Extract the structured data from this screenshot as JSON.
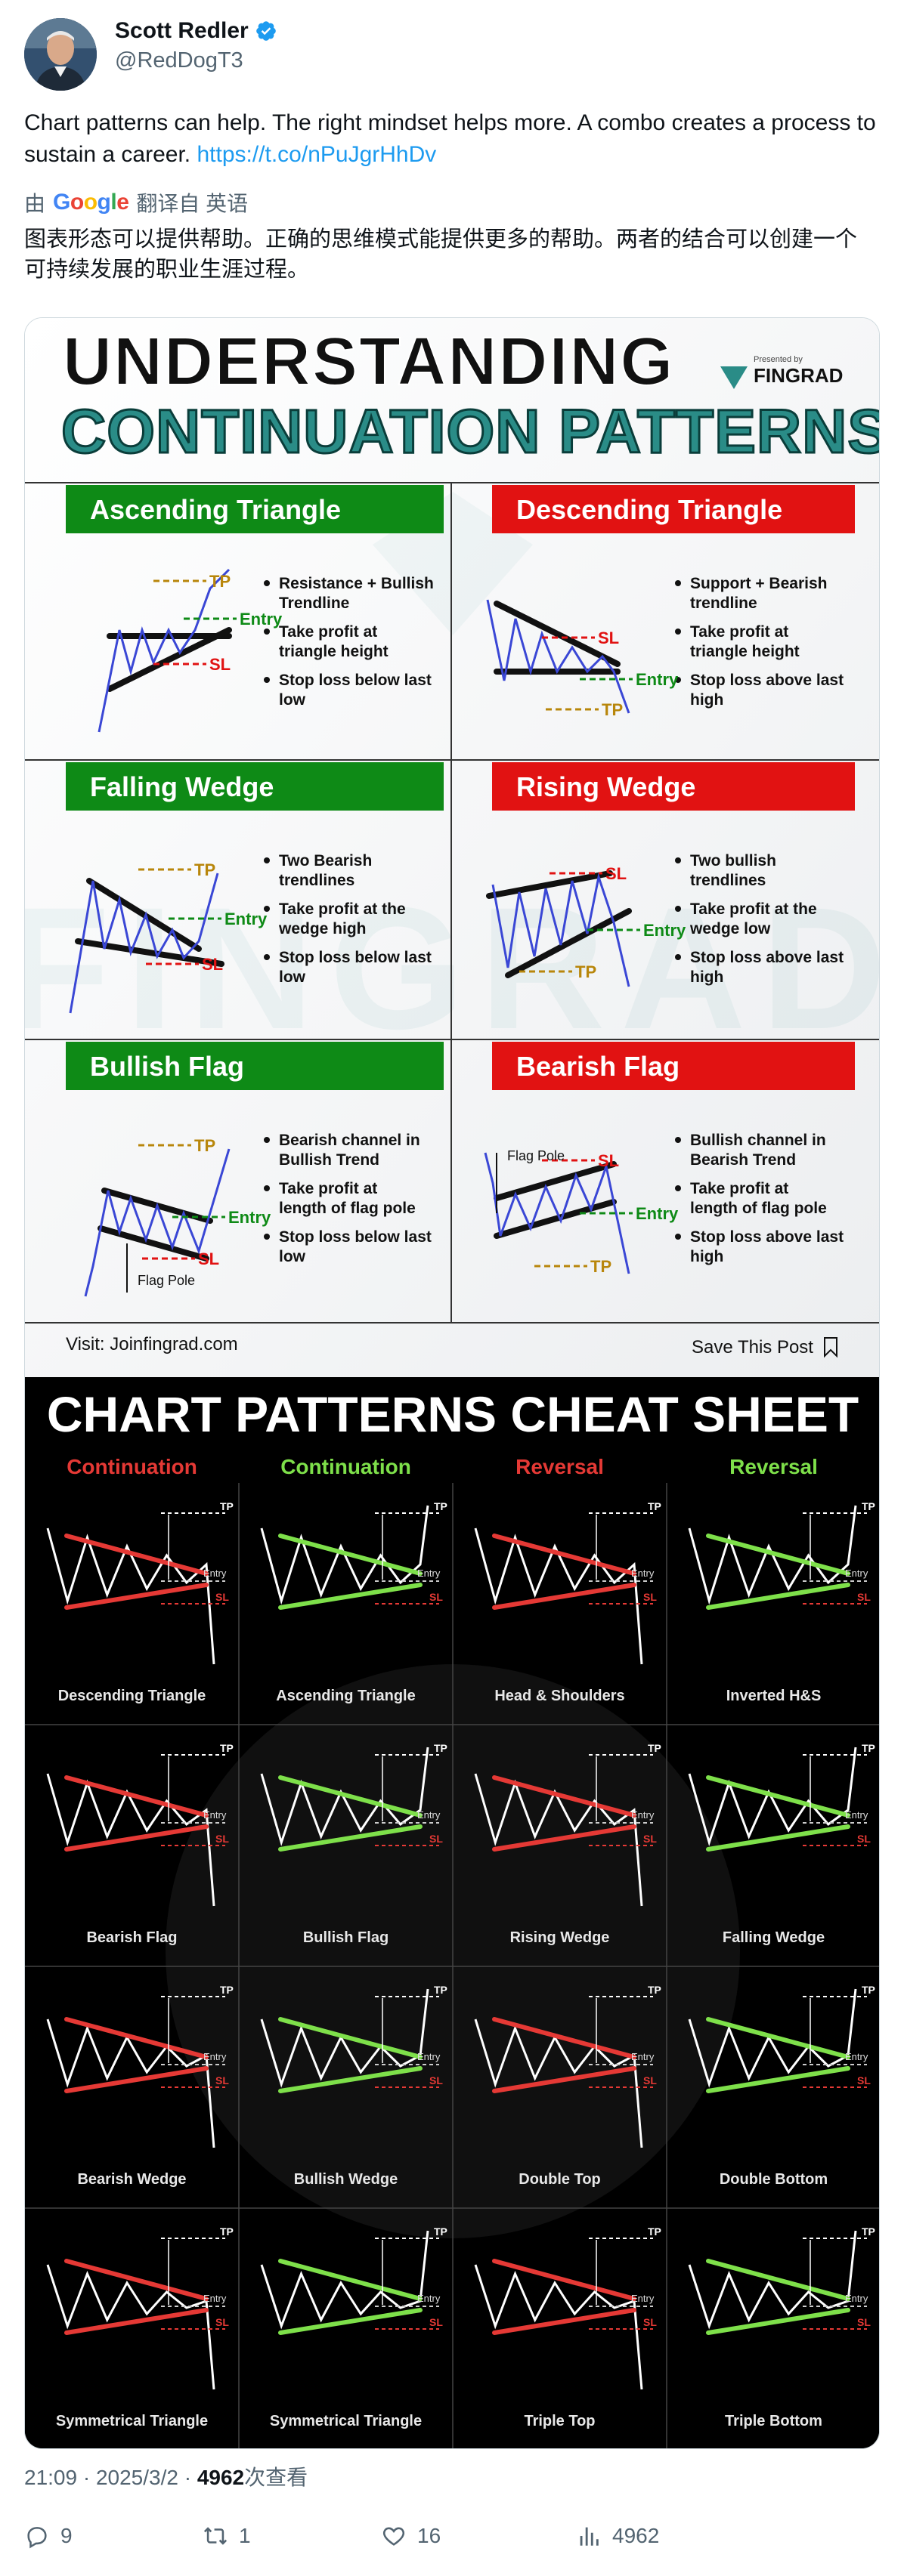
{
  "author": {
    "name": "Scott Redler",
    "handle": "@RedDogT3"
  },
  "tweet": {
    "text": "Chart patterns can help.  The right mindset helps more.  A combo creates a process to sustain a career. ",
    "link": "https://t.co/nPuJgrHhDv"
  },
  "translation": {
    "by": "由",
    "google": [
      "G",
      "o",
      "o",
      "g",
      "l",
      "e"
    ],
    "from": "翻译自 英语",
    "text": "图表形态可以提供帮助。正确的思维模式能提供更多的帮助。两者的结合可以创建一个可持续发展的职业生涯过程。"
  },
  "image1": {
    "title_line1": "UNDERSTANDING",
    "title_line2": "CONTINUATION PATTERNS",
    "presented_by": "Presented by",
    "brand": "FINGRAD",
    "watermark": "FINGRAD",
    "panels": [
      {
        "title": "Ascending Triangle",
        "color": "#0e8a16",
        "bullets": [
          "Resistance + Bullish Trendline",
          "Take profit at triangle height",
          "Stop loss below last low"
        ]
      },
      {
        "title": "Descending Triangle",
        "color": "#e11212",
        "bullets": [
          "Support + Bearish trendline",
          "Take profit at triangle height",
          "Stop loss above last high"
        ]
      },
      {
        "title": "Falling Wedge",
        "color": "#0e8a16",
        "bullets": [
          "Two Bearish trendlines",
          "Take profit at the wedge high",
          "Stop loss below last low"
        ]
      },
      {
        "title": "Rising Wedge",
        "color": "#e11212",
        "bullets": [
          "Two bullish trendlines",
          "Take profit at the wedge low",
          "Stop loss above last high"
        ]
      },
      {
        "title": "Bullish Flag",
        "color": "#0e8a16",
        "bullets": [
          "Bearish channel in Bullish Trend",
          "Take profit at length of flag pole",
          "Stop loss below last low"
        ]
      },
      {
        "title": "Bearish Flag",
        "color": "#e11212",
        "bullets": [
          "Bullish channel in Bearish Trend",
          "Take profit at length of flag pole",
          "Stop loss above last high"
        ]
      }
    ],
    "labels": {
      "tp": "TP",
      "entry": "Entry",
      "sl": "SL",
      "flag_pole": "Flag Pole"
    },
    "footer_left": "Visit: Joinfingrad.com",
    "footer_right": "Save This Post"
  },
  "image2": {
    "title": "CHART PATTERNS CHEAT SHEET",
    "columns": [
      {
        "label": "Continuation",
        "color": "#e53935"
      },
      {
        "label": "Continuation",
        "color": "#7ee04a"
      },
      {
        "label": "Reversal",
        "color": "#e53935"
      },
      {
        "label": "Reversal",
        "color": "#7ee04a"
      }
    ],
    "labels": {
      "tp": "TP",
      "entry": "Entry",
      "sl": "SL"
    },
    "cells": [
      [
        "Descending Triangle",
        "Ascending Triangle",
        "Head & Shoulders",
        "Inverted H&S"
      ],
      [
        "Bearish Flag",
        "Bullish Flag",
        "Rising Wedge",
        "Falling Wedge"
      ],
      [
        "Bearish Wedge",
        "Bullish Wedge",
        "Double Top",
        "Double Bottom"
      ],
      [
        "Symmetrical Triangle",
        "Symmetrical Triangle",
        "Triple Top",
        "Triple Bottom"
      ]
    ]
  },
  "footer": {
    "time": "21:09 · 2025/3/2 · ",
    "views_count": "4962",
    "views_label": "次查看"
  },
  "actions": {
    "replies": "9",
    "retweets": "1",
    "likes": "16",
    "views": "4962"
  },
  "colors": {
    "link": "#1d9bf0",
    "green": "#0e8a16",
    "red": "#e11212",
    "teal": "#2a8c87",
    "muted": "#536471"
  }
}
